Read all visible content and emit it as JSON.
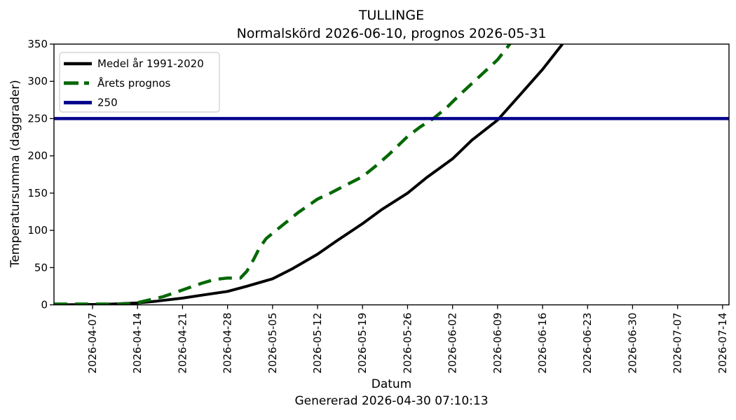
{
  "chart_data": {
    "type": "line",
    "title": "TULLINGE",
    "subtitle": "Normalskörd 2026-06-10, prognos 2026-05-31",
    "xlabel": "Datum",
    "ylabel": "Temperatursumma (daggrader)",
    "caption": "Genererad 2026-04-30 07:10:13",
    "x_domain": [
      "2026-04-01",
      "2026-07-15"
    ],
    "ylim": [
      0,
      350
    ],
    "y_ticks": [
      0,
      50,
      100,
      150,
      200,
      250,
      300,
      350
    ],
    "x_ticks": [
      "2026-04-07",
      "2026-04-14",
      "2026-04-21",
      "2026-04-28",
      "2026-05-05",
      "2026-05-12",
      "2026-05-19",
      "2026-05-26",
      "2026-06-02",
      "2026-06-09",
      "2026-06-16",
      "2026-06-23",
      "2026-06-30",
      "2026-07-07",
      "2026-07-14"
    ],
    "grid": false,
    "legend_position": "upper-left",
    "series": [
      {
        "id": "medel",
        "name": "Medel år 1991-2020",
        "color": "#000000",
        "style": "solid",
        "width": 4,
        "points": [
          [
            "2026-04-01",
            0
          ],
          [
            "2026-04-07",
            0.5
          ],
          [
            "2026-04-10",
            1
          ],
          [
            "2026-04-14",
            2.5
          ],
          [
            "2026-04-17",
            5
          ],
          [
            "2026-04-21",
            9
          ],
          [
            "2026-04-24",
            13
          ],
          [
            "2026-04-28",
            18
          ],
          [
            "2026-05-01",
            25
          ],
          [
            "2026-05-05",
            35
          ],
          [
            "2026-05-08",
            48
          ],
          [
            "2026-05-12",
            68
          ],
          [
            "2026-05-15",
            86
          ],
          [
            "2026-05-19",
            109
          ],
          [
            "2026-05-22",
            128
          ],
          [
            "2026-05-26",
            150
          ],
          [
            "2026-05-29",
            171
          ],
          [
            "2026-06-02",
            196
          ],
          [
            "2026-06-05",
            221
          ],
          [
            "2026-06-09",
            248
          ],
          [
            "2026-06-12",
            277
          ],
          [
            "2026-06-16",
            316
          ],
          [
            "2026-06-19",
            349
          ],
          [
            "2026-06-20",
            361
          ]
        ]
      },
      {
        "id": "prognos",
        "name": "Årets prognos",
        "color": "#066806",
        "style": "dashed",
        "width": 4.5,
        "points": [
          [
            "2026-04-01",
            1
          ],
          [
            "2026-04-08",
            1
          ],
          [
            "2026-04-12",
            1
          ],
          [
            "2026-04-14",
            3
          ],
          [
            "2026-04-16",
            7
          ],
          [
            "2026-04-18",
            11
          ],
          [
            "2026-04-20",
            17
          ],
          [
            "2026-04-22",
            23
          ],
          [
            "2026-04-24",
            29
          ],
          [
            "2026-04-26",
            34
          ],
          [
            "2026-04-28",
            36
          ],
          [
            "2026-04-30",
            36
          ],
          [
            "2026-05-01",
            45
          ],
          [
            "2026-05-02",
            60
          ],
          [
            "2026-05-03",
            77
          ],
          [
            "2026-05-04",
            89
          ],
          [
            "2026-05-05",
            96
          ],
          [
            "2026-05-07",
            110
          ],
          [
            "2026-05-09",
            124
          ],
          [
            "2026-05-11",
            136
          ],
          [
            "2026-05-12",
            142
          ],
          [
            "2026-05-14",
            150
          ],
          [
            "2026-05-16",
            159
          ],
          [
            "2026-05-19",
            172
          ],
          [
            "2026-05-21",
            186
          ],
          [
            "2026-05-23",
            201
          ],
          [
            "2026-05-26",
            226
          ],
          [
            "2026-05-28",
            239
          ],
          [
            "2026-05-30",
            250
          ],
          [
            "2026-06-01",
            264
          ],
          [
            "2026-06-03",
            281
          ],
          [
            "2026-06-05",
            297
          ],
          [
            "2026-06-07",
            313
          ],
          [
            "2026-06-09",
            329
          ],
          [
            "2026-06-11",
            351
          ],
          [
            "2026-06-12",
            362
          ]
        ]
      },
      {
        "id": "threshold-250",
        "name": "250",
        "color": "#00008b",
        "style": "solid",
        "width": 4.5,
        "points": [
          [
            "2026-04-01",
            250
          ],
          [
            "2026-07-15",
            250
          ]
        ]
      }
    ]
  }
}
